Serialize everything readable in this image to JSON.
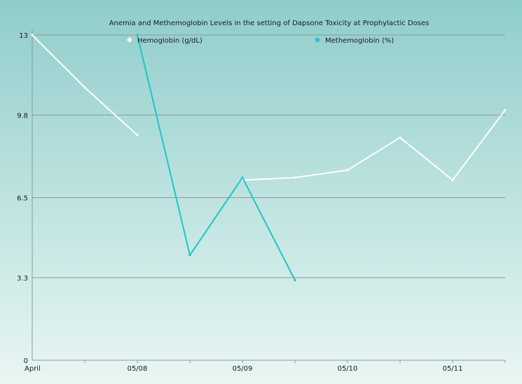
{
  "chart_data": {
    "type": "line",
    "title": "Anemia and Methemoglobin Levels in the setting of Dapsone Toxicity at Prophylactic Doses",
    "xlabel": "",
    "ylabel": "",
    "x_tick_labels": [
      "April",
      "05/08",
      "05/09",
      "05/10",
      "05/11"
    ],
    "y_ticks": [
      "0",
      "3.3",
      "6.5",
      "9.8",
      "13"
    ],
    "ylim": [
      0,
      13
    ],
    "grid": true,
    "legend_position": "top",
    "series": [
      {
        "name": "Hemoglobin (g/dL)",
        "color": "#ffffff",
        "points": [
          {
            "x": 0,
            "y": 13.0
          },
          {
            "x": 1,
            "y": 10.9
          },
          {
            "x": 2,
            "y": 9.0
          },
          null,
          {
            "x": 4,
            "y": 7.2
          },
          {
            "x": 5,
            "y": 7.3
          },
          {
            "x": 6,
            "y": 7.6
          },
          {
            "x": 7,
            "y": 8.9
          },
          {
            "x": 8,
            "y": 7.2
          },
          {
            "x": 9,
            "y": 10.0
          }
        ]
      },
      {
        "name": "Methemoglobin (%)",
        "color": "#1cc7c8",
        "points": [
          {
            "x": 2,
            "y": 13.0
          },
          {
            "x": 3,
            "y": 4.2
          },
          {
            "x": 4,
            "y": 7.3
          },
          {
            "x": 5,
            "y": 3.2
          }
        ]
      }
    ]
  }
}
